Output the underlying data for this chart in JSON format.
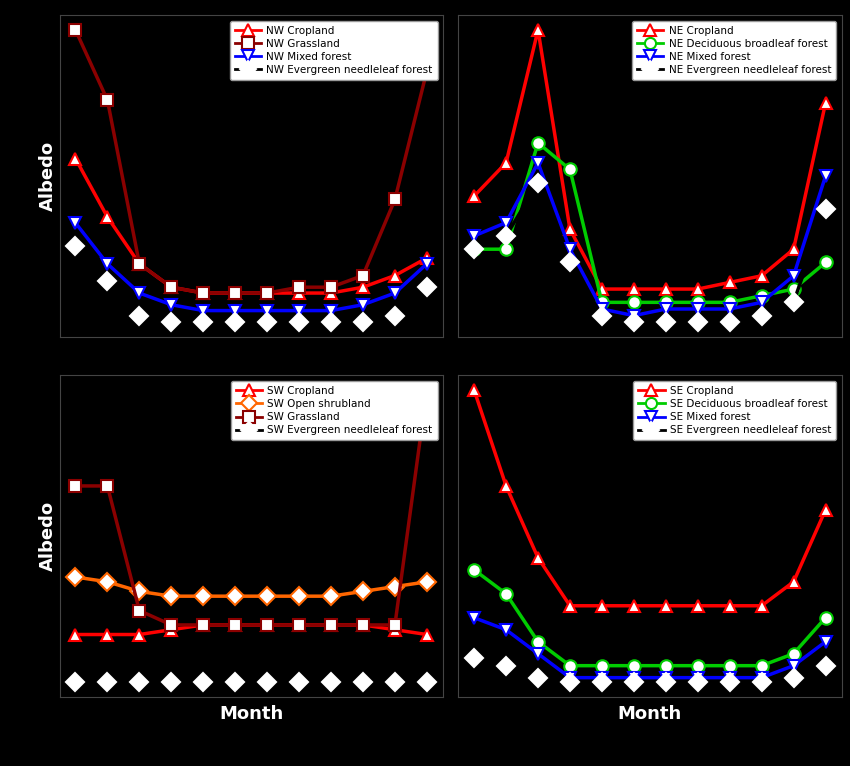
{
  "background_color": "#000000",
  "axes_bg_color": "#000000",
  "text_color": "#ffffff",
  "legend_bg": "#ffffff",
  "legend_text_color": "#000000",
  "months": [
    1,
    2,
    3,
    4,
    5,
    6,
    7,
    8,
    9,
    10,
    11,
    12
  ],
  "NW": {
    "order": [
      "Cropland",
      "Grassland",
      "Mixed forest",
      "Evergreen needleleaf forest"
    ],
    "Cropland": {
      "color": "#ff0000",
      "marker": "^",
      "values": [
        0.4,
        0.3,
        0.22,
        0.18,
        0.17,
        0.17,
        0.17,
        0.17,
        0.17,
        0.18,
        0.2,
        0.23
      ]
    },
    "Grassland": {
      "color": "#8b0000",
      "marker": "s",
      "values": [
        0.62,
        0.5,
        0.22,
        0.18,
        0.17,
        0.17,
        0.17,
        0.18,
        0.18,
        0.2,
        0.33,
        0.55
      ]
    },
    "Mixed forest": {
      "color": "#0000ff",
      "marker": "v",
      "values": [
        0.29,
        0.22,
        0.17,
        0.15,
        0.14,
        0.14,
        0.14,
        0.14,
        0.14,
        0.15,
        0.17,
        0.22
      ]
    },
    "Evergreen needleleaf forest": {
      "color": "#ffffff",
      "linecolor": "#000000",
      "marker": "D",
      "values": [
        0.25,
        0.19,
        0.13,
        0.12,
        0.12,
        0.12,
        0.12,
        0.12,
        0.12,
        0.12,
        0.13,
        0.18
      ]
    }
  },
  "NE": {
    "order": [
      "Cropland",
      "Deciduous broadleaf forest",
      "Mixed forest",
      "Evergreen needleleaf forest"
    ],
    "Cropland": {
      "color": "#ff0000",
      "marker": "^",
      "values": [
        0.3,
        0.35,
        0.55,
        0.25,
        0.16,
        0.16,
        0.16,
        0.16,
        0.17,
        0.18,
        0.22,
        0.44
      ]
    },
    "Deciduous broadleaf forest": {
      "color": "#00cc00",
      "marker": "o",
      "values": [
        0.22,
        0.22,
        0.38,
        0.34,
        0.14,
        0.14,
        0.14,
        0.14,
        0.14,
        0.15,
        0.16,
        0.2
      ]
    },
    "Mixed forest": {
      "color": "#0000ff",
      "marker": "v",
      "values": [
        0.24,
        0.26,
        0.35,
        0.22,
        0.13,
        0.12,
        0.13,
        0.13,
        0.13,
        0.14,
        0.18,
        0.33
      ]
    },
    "Evergreen needleleaf forest": {
      "color": "#ffffff",
      "linecolor": "#000000",
      "marker": "D",
      "values": [
        0.22,
        0.24,
        0.32,
        0.2,
        0.12,
        0.11,
        0.11,
        0.11,
        0.11,
        0.12,
        0.14,
        0.28
      ]
    }
  },
  "SW": {
    "order": [
      "Cropland",
      "Open shrubland",
      "Grassland",
      "Evergreen needleleaf forest"
    ],
    "Cropland": {
      "color": "#ff0000",
      "marker": "^",
      "values": [
        0.165,
        0.165,
        0.165,
        0.17,
        0.175,
        0.175,
        0.175,
        0.175,
        0.175,
        0.175,
        0.17,
        0.165
      ]
    },
    "Open shrubland": {
      "color": "#ff6600",
      "marker": "D",
      "values": [
        0.225,
        0.22,
        0.21,
        0.205,
        0.205,
        0.205,
        0.205,
        0.205,
        0.205,
        0.21,
        0.215,
        0.22
      ]
    },
    "Grassland": {
      "color": "#8b0000",
      "marker": "s",
      "values": [
        0.32,
        0.32,
        0.19,
        0.175,
        0.175,
        0.175,
        0.175,
        0.175,
        0.175,
        0.175,
        0.175,
        0.42
      ]
    },
    "Evergreen needleleaf forest": {
      "color": "#ffffff",
      "linecolor": "#000000",
      "marker": "D",
      "values": [
        0.115,
        0.115,
        0.115,
        0.115,
        0.115,
        0.115,
        0.115,
        0.115,
        0.115,
        0.115,
        0.115,
        0.115
      ]
    }
  },
  "SE": {
    "order": [
      "Cropland",
      "Deciduous broadleaf forest",
      "Mixed forest",
      "Evergreen needleleaf forest"
    ],
    "Cropland": {
      "color": "#ff0000",
      "marker": "^",
      "values": [
        0.26,
        0.22,
        0.19,
        0.17,
        0.17,
        0.17,
        0.17,
        0.17,
        0.17,
        0.17,
        0.18,
        0.21
      ]
    },
    "Deciduous broadleaf forest": {
      "color": "#00cc00",
      "marker": "o",
      "values": [
        0.185,
        0.175,
        0.155,
        0.145,
        0.145,
        0.145,
        0.145,
        0.145,
        0.145,
        0.145,
        0.15,
        0.165
      ]
    },
    "Mixed forest": {
      "color": "#0000ff",
      "marker": "v",
      "values": [
        0.165,
        0.16,
        0.15,
        0.14,
        0.14,
        0.14,
        0.14,
        0.14,
        0.14,
        0.14,
        0.145,
        0.155
      ]
    },
    "Evergreen needleleaf forest": {
      "color": "#ffffff",
      "linecolor": "#000000",
      "marker": "D",
      "values": [
        0.148,
        0.145,
        0.14,
        0.138,
        0.138,
        0.138,
        0.138,
        0.138,
        0.138,
        0.138,
        0.14,
        0.145
      ]
    }
  },
  "albedo_label": "Albedo",
  "month_label": "Month"
}
